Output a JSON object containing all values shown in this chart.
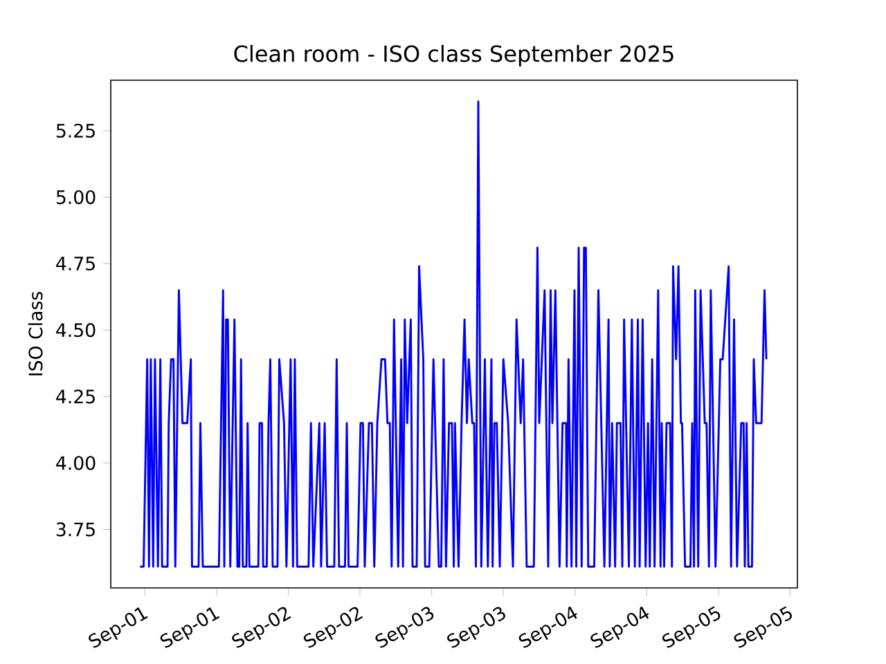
{
  "chart_data": {
    "type": "line",
    "title": "Clean room - ISO class September 2025",
    "ylabel": "ISO Class",
    "color": "#0000ff",
    "xlim": [
      "2025-08-31T18:18",
      "2025-09-05T13:12"
    ],
    "ylim": [
      3.53,
      5.44
    ],
    "xticks": [
      {
        "value": "2025-09-01T00:00",
        "label": "Sep-01"
      },
      {
        "value": "2025-09-01T12:00",
        "label": "Sep-01"
      },
      {
        "value": "2025-09-02T00:00",
        "label": "Sep-02"
      },
      {
        "value": "2025-09-02T12:00",
        "label": "Sep-02"
      },
      {
        "value": "2025-09-03T00:00",
        "label": "Sep-03"
      },
      {
        "value": "2025-09-03T12:00",
        "label": "Sep-03"
      },
      {
        "value": "2025-09-04T00:00",
        "label": "Sep-04"
      },
      {
        "value": "2025-09-04T12:00",
        "label": "Sep-04"
      },
      {
        "value": "2025-09-05T00:00",
        "label": "Sep-05"
      },
      {
        "value": "2025-09-05T12:00",
        "label": "Sep-05"
      }
    ],
    "yticks": [
      {
        "value": 3.75,
        "label": "3.75"
      },
      {
        "value": 4.0,
        "label": "4.00"
      },
      {
        "value": 4.25,
        "label": "4.25"
      },
      {
        "value": 4.5,
        "label": "4.50"
      },
      {
        "value": 4.75,
        "label": "4.75"
      },
      {
        "value": 5.0,
        "label": "5.00"
      },
      {
        "value": 5.25,
        "label": "5.25"
      }
    ],
    "x": [
      "2025-08-31T23:12",
      "2025-08-31T23:48",
      "2025-09-01T00:24",
      "2025-09-01T00:42",
      "2025-09-01T01:00",
      "2025-09-01T01:24",
      "2025-09-01T01:42",
      "2025-09-01T02:12",
      "2025-09-01T02:36",
      "2025-09-01T02:54",
      "2025-09-01T03:48",
      "2025-09-01T04:00",
      "2025-09-01T04:24",
      "2025-09-01T04:48",
      "2025-09-01T05:06",
      "2025-09-01T05:42",
      "2025-09-01T06:18",
      "2025-09-01T07:06",
      "2025-09-01T07:42",
      "2025-09-01T07:54",
      "2025-09-01T09:00",
      "2025-09-01T09:18",
      "2025-09-01T09:42",
      "2025-09-01T12:24",
      "2025-09-01T13:06",
      "2025-09-01T13:18",
      "2025-09-01T13:36",
      "2025-09-01T13:54",
      "2025-09-01T14:18",
      "2025-09-01T15:00",
      "2025-09-01T15:30",
      "2025-09-01T15:48",
      "2025-09-01T16:06",
      "2025-09-01T16:24",
      "2025-09-01T17:00",
      "2025-09-01T17:12",
      "2025-09-01T17:30",
      "2025-09-01T19:00",
      "2025-09-01T19:12",
      "2025-09-01T19:36",
      "2025-09-01T19:48",
      "2025-09-01T20:24",
      "2025-09-01T20:42",
      "2025-09-01T21:00",
      "2025-09-01T21:24",
      "2025-09-01T22:12",
      "2025-09-01T22:30",
      "2025-09-01T23:18",
      "2025-09-01T23:42",
      "2025-09-02T00:24",
      "2025-09-02T00:48",
      "2025-09-02T01:06",
      "2025-09-02T01:30",
      "2025-09-02T03:24",
      "2025-09-02T03:48",
      "2025-09-02T04:12",
      "2025-09-02T05:12",
      "2025-09-02T05:30",
      "2025-09-02T06:06",
      "2025-09-02T06:30",
      "2025-09-02T07:42",
      "2025-09-02T08:06",
      "2025-09-02T08:30",
      "2025-09-02T09:30",
      "2025-09-02T09:48",
      "2025-09-02T10:06",
      "2025-09-02T11:36",
      "2025-09-02T12:06",
      "2025-09-02T12:30",
      "2025-09-02T12:48",
      "2025-09-02T13:30",
      "2025-09-02T14:00",
      "2025-09-02T14:24",
      "2025-09-02T14:54",
      "2025-09-02T15:36",
      "2025-09-02T16:12",
      "2025-09-02T16:36",
      "2025-09-02T17:00",
      "2025-09-02T17:18",
      "2025-09-02T17:42",
      "2025-09-02T18:24",
      "2025-09-02T18:54",
      "2025-09-02T19:12",
      "2025-09-02T19:30",
      "2025-09-02T19:54",
      "2025-09-02T20:30",
      "2025-09-02T20:48",
      "2025-09-02T21:30",
      "2025-09-02T21:54",
      "2025-09-02T22:36",
      "2025-09-02T22:54",
      "2025-09-02T23:36",
      "2025-09-03T00:18",
      "2025-09-03T01:12",
      "2025-09-03T01:36",
      "2025-09-03T02:00",
      "2025-09-03T02:24",
      "2025-09-03T02:54",
      "2025-09-03T03:24",
      "2025-09-03T03:42",
      "2025-09-03T03:54",
      "2025-09-03T04:30",
      "2025-09-03T05:00",
      "2025-09-03T05:30",
      "2025-09-03T05:54",
      "2025-09-03T06:12",
      "2025-09-03T06:48",
      "2025-09-03T07:06",
      "2025-09-03T07:24",
      "2025-09-03T07:48",
      "2025-09-03T08:18",
      "2025-09-03T08:54",
      "2025-09-03T09:24",
      "2025-09-03T10:00",
      "2025-09-03T10:12",
      "2025-09-03T10:30",
      "2025-09-03T10:54",
      "2025-09-03T11:24",
      "2025-09-03T12:00",
      "2025-09-03T12:48",
      "2025-09-03T13:36",
      "2025-09-03T14:12",
      "2025-09-03T14:54",
      "2025-09-03T15:18",
      "2025-09-03T15:54",
      "2025-09-03T17:06",
      "2025-09-03T17:42",
      "2025-09-03T18:00",
      "2025-09-03T18:54",
      "2025-09-03T19:30",
      "2025-09-03T19:54",
      "2025-09-03T20:12",
      "2025-09-03T20:42",
      "2025-09-03T21:24",
      "2025-09-03T21:54",
      "2025-09-03T22:30",
      "2025-09-03T22:36",
      "2025-09-03T22:54",
      "2025-09-03T23:24",
      "2025-09-03T23:54",
      "2025-09-04T00:12",
      "2025-09-04T00:36",
      "2025-09-04T01:06",
      "2025-09-04T01:30",
      "2025-09-04T01:48",
      "2025-09-04T02:12",
      "2025-09-04T03:12",
      "2025-09-04T03:54",
      "2025-09-04T04:54",
      "2025-09-04T05:36",
      "2025-09-04T05:48",
      "2025-09-04T06:12",
      "2025-09-04T06:42",
      "2025-09-04T07:00",
      "2025-09-04T07:36",
      "2025-09-04T07:54",
      "2025-09-04T08:12",
      "2025-09-04T09:00",
      "2025-09-04T09:30",
      "2025-09-04T10:00",
      "2025-09-04T10:30",
      "2025-09-04T10:48",
      "2025-09-04T11:18",
      "2025-09-04T11:48",
      "2025-09-04T12:12",
      "2025-09-04T12:30",
      "2025-09-04T12:54",
      "2025-09-04T13:18",
      "2025-09-04T13:54",
      "2025-09-04T14:18",
      "2025-09-04T14:30",
      "2025-09-04T14:54",
      "2025-09-04T15:18",
      "2025-09-04T15:54",
      "2025-09-04T16:12",
      "2025-09-04T16:24",
      "2025-09-04T16:54",
      "2025-09-04T17:18",
      "2025-09-04T17:42",
      "2025-09-04T17:54",
      "2025-09-04T18:24",
      "2025-09-04T19:18",
      "2025-09-04T19:36",
      "2025-09-04T19:54",
      "2025-09-04T20:06",
      "2025-09-04T20:36",
      "2025-09-04T21:00",
      "2025-09-04T21:42",
      "2025-09-04T22:00",
      "2025-09-04T22:24",
      "2025-09-04T22:42",
      "2025-09-04T23:30",
      "2025-09-05T00:18",
      "2025-09-05T00:42",
      "2025-09-05T01:42",
      "2025-09-05T02:06",
      "2025-09-05T02:36",
      "2025-09-05T03:06",
      "2025-09-05T03:48",
      "2025-09-05T04:12",
      "2025-09-05T04:24",
      "2025-09-05T04:42",
      "2025-09-05T05:00",
      "2025-09-05T05:36",
      "2025-09-05T05:54",
      "2025-09-05T06:18",
      "2025-09-05T06:54",
      "2025-09-05T07:12",
      "2025-09-05T07:42",
      "2025-09-05T08:00"
    ],
    "values": [
      3.61,
      3.61,
      4.39,
      3.61,
      4.39,
      3.61,
      4.39,
      3.61,
      4.39,
      3.61,
      3.61,
      4.15,
      4.39,
      4.39,
      3.61,
      4.65,
      4.15,
      4.15,
      4.39,
      3.61,
      3.61,
      4.15,
      3.61,
      3.61,
      4.65,
      3.61,
      4.54,
      4.54,
      3.61,
      4.54,
      3.61,
      3.61,
      4.39,
      3.61,
      3.61,
      4.15,
      3.61,
      3.61,
      4.15,
      4.15,
      3.61,
      3.61,
      4.15,
      4.39,
      3.61,
      3.61,
      4.39,
      4.15,
      3.61,
      4.39,
      3.61,
      4.39,
      3.61,
      3.61,
      4.15,
      3.61,
      4.15,
      3.61,
      4.15,
      3.61,
      3.61,
      4.39,
      3.61,
      3.61,
      4.15,
      3.61,
      3.61,
      4.15,
      4.15,
      3.61,
      4.15,
      4.15,
      3.61,
      4.15,
      4.39,
      4.39,
      4.15,
      4.15,
      3.61,
      4.54,
      3.61,
      4.39,
      3.61,
      4.54,
      4.15,
      4.54,
      3.61,
      3.61,
      4.74,
      4.39,
      3.61,
      3.61,
      4.39,
      3.61,
      3.61,
      4.39,
      3.61,
      4.15,
      4.15,
      3.61,
      4.15,
      3.61,
      4.15,
      4.54,
      4.15,
      4.39,
      4.15,
      4.15,
      3.61,
      5.36,
      3.61,
      4.39,
      3.61,
      4.39,
      3.61,
      4.15,
      4.15,
      3.61,
      4.39,
      4.15,
      3.61,
      4.54,
      4.15,
      4.39,
      3.61,
      3.61,
      4.81,
      4.15,
      4.65,
      3.61,
      4.65,
      4.15,
      4.65,
      3.61,
      4.15,
      4.15,
      3.61,
      4.39,
      3.61,
      4.65,
      3.61,
      4.81,
      3.61,
      4.81,
      4.81,
      3.61,
      3.61,
      4.65,
      3.61,
      4.54,
      3.61,
      4.15,
      3.61,
      4.15,
      4.15,
      3.61,
      4.54,
      3.61,
      4.54,
      3.61,
      4.54,
      3.61,
      4.54,
      3.61,
      4.15,
      3.61,
      4.39,
      3.61,
      4.65,
      3.61,
      4.15,
      3.61,
      4.15,
      4.15,
      3.61,
      4.74,
      4.39,
      4.74,
      4.15,
      4.15,
      3.61,
      3.61,
      4.15,
      3.61,
      4.65,
      3.61,
      4.65,
      4.15,
      4.15,
      3.61,
      4.65,
      3.61,
      4.39,
      4.39,
      4.74,
      3.61,
      4.54,
      3.61,
      4.15,
      4.15,
      3.61,
      4.15,
      3.61,
      3.61,
      4.39,
      4.15,
      4.15,
      4.15,
      4.65,
      4.39
    ]
  }
}
